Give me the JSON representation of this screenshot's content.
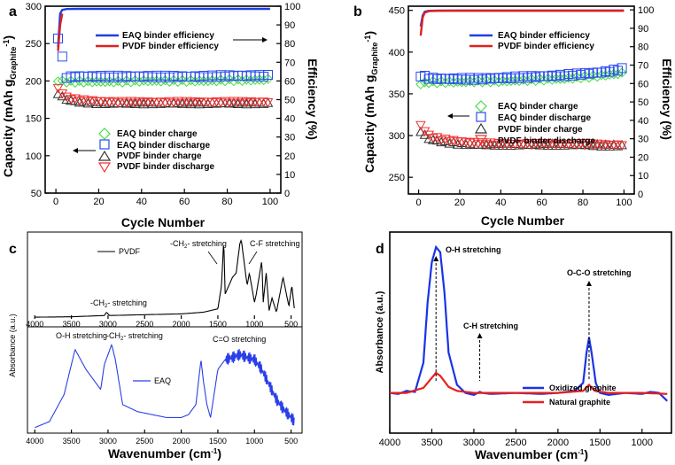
{
  "chart_data": [
    {
      "panel": "a",
      "type": "scatter",
      "xlabel": "Cycle Number",
      "ylabel_left": "Capacity (mAh g",
      "ylabel_left_sub": "Graphite",
      "ylabel_left_end": "-1",
      "ylabel_right": "Efficiency (%)",
      "xlim": [
        -5,
        105
      ],
      "xticks": [
        0,
        20,
        40,
        60,
        80,
        100
      ],
      "ylim_left": [
        50,
        300
      ],
      "yticks_left": [
        50,
        100,
        150,
        200,
        250,
        300
      ],
      "ylim_right": [
        0,
        100
      ],
      "yticks_right": [
        0,
        10,
        20,
        30,
        40,
        50,
        60,
        70,
        80,
        90,
        100
      ],
      "series": [
        {
          "name": "EAQ binder efficiency",
          "axis": "right",
          "style": "line",
          "color": "#1f3fe0",
          "x": [
            1,
            2,
            3,
            5,
            10,
            20,
            40,
            60,
            80,
            100
          ],
          "y": [
            78,
            96,
            98,
            98.5,
            98.6,
            98.6,
            98.6,
            98.6,
            98.6,
            98.6
          ]
        },
        {
          "name": "PVDF binder efficiency",
          "axis": "right",
          "style": "line",
          "color": "#e02020",
          "x": [
            1,
            2,
            3
          ],
          "y": [
            76,
            90,
            96
          ]
        },
        {
          "name": "EAQ binder charge",
          "axis": "left",
          "marker": "diamond",
          "color": "#44dd44",
          "x": [
            1,
            5,
            10,
            20,
            30,
            40,
            50,
            60,
            70,
            80,
            90,
            100
          ],
          "y": [
            200,
            199,
            199,
            199,
            199,
            200,
            200,
            200,
            200,
            201,
            201,
            202
          ]
        },
        {
          "name": "EAQ binder discharge",
          "axis": "left",
          "marker": "square",
          "color": "#2a4cf0",
          "x": [
            1,
            5,
            10,
            20,
            30,
            40,
            50,
            60,
            70,
            80,
            90,
            100
          ],
          "y": [
            258,
            205,
            206,
            206,
            206,
            206,
            206,
            206,
            206,
            207,
            207,
            207
          ]
        },
        {
          "name": "PVDF binder charge",
          "axis": "left",
          "marker": "triangle-up",
          "color": "#333333",
          "x": [
            1,
            5,
            10,
            20,
            30,
            40,
            50,
            60,
            70,
            80,
            90,
            100
          ],
          "y": [
            183,
            175,
            172,
            170,
            170,
            170,
            170,
            170,
            170,
            170,
            170,
            170
          ]
        },
        {
          "name": "PVDF binder discharge",
          "axis": "left",
          "marker": "triangle-down",
          "color": "#f03030",
          "x": [
            1,
            5,
            10,
            20,
            30,
            40,
            50,
            60,
            70,
            80,
            90,
            100
          ],
          "y": [
            190,
            178,
            175,
            173,
            172,
            172,
            172,
            172,
            172,
            172,
            172,
            172
          ]
        }
      ]
    },
    {
      "panel": "b",
      "type": "scatter",
      "xlabel": "Cycle Number",
      "ylabel_left": "Capacity (mAh g",
      "ylabel_left_sub": "Graphite",
      "ylabel_left_end": "-1",
      "ylabel_right": "Efficiency (%)",
      "xlim": [
        -5,
        105
      ],
      "xticks": [
        0,
        20,
        40,
        60,
        80,
        100
      ],
      "ylim_left": [
        230,
        455
      ],
      "yticks_left": [
        250,
        300,
        350,
        400,
        450
      ],
      "ylim_right": [
        0,
        102
      ],
      "yticks_right": [
        0,
        10,
        20,
        30,
        40,
        50,
        60,
        70,
        80,
        90,
        100
      ],
      "series": [
        {
          "name": "EAQ binder efficiency",
          "axis": "right",
          "style": "line",
          "color": "#1f3fe0",
          "x": [
            1,
            2,
            3,
            5,
            10,
            20,
            40,
            60,
            80,
            100
          ],
          "y": [
            91,
            97,
            99,
            99.5,
            99.6,
            99.6,
            99.6,
            99.6,
            99.6,
            99.6
          ]
        },
        {
          "name": "PVDF binder efficiency",
          "axis": "right",
          "style": "line",
          "color": "#e02020",
          "x": [
            1,
            2,
            3,
            5,
            10,
            20,
            40,
            60,
            80,
            100
          ],
          "y": [
            86,
            96,
            98.5,
            99.3,
            99.5,
            99.6,
            99.6,
            99.6,
            99.6,
            99.6
          ]
        },
        {
          "name": "EAQ binder charge",
          "axis": "left",
          "marker": "diamond",
          "color": "#44dd44",
          "x": [
            1,
            5,
            10,
            20,
            30,
            40,
            50,
            60,
            70,
            80,
            90,
            100
          ],
          "y": [
            362,
            364,
            364,
            364,
            365,
            365,
            366,
            367,
            368,
            370,
            372,
            375
          ]
        },
        {
          "name": "EAQ binder discharge",
          "axis": "left",
          "marker": "square",
          "color": "#2a4cf0",
          "x": [
            1,
            5,
            10,
            20,
            30,
            40,
            50,
            60,
            70,
            80,
            90,
            100
          ],
          "y": [
            372,
            369,
            368,
            368,
            368,
            369,
            370,
            371,
            372,
            374,
            376,
            380
          ]
        },
        {
          "name": "PVDF binder charge",
          "axis": "left",
          "marker": "triangle-up",
          "color": "#333333",
          "x": [
            1,
            5,
            10,
            20,
            30,
            40,
            50,
            60,
            70,
            80,
            90,
            100
          ],
          "y": [
            305,
            296,
            293,
            290,
            289,
            289,
            289,
            289,
            289,
            289,
            288,
            288
          ]
        },
        {
          "name": "PVDF binder discharge",
          "axis": "left",
          "marker": "triangle-down",
          "color": "#f03030",
          "x": [
            1,
            5,
            10,
            20,
            30,
            40,
            50,
            60,
            70,
            80,
            90,
            100
          ],
          "y": [
            312,
            300,
            296,
            293,
            291,
            290,
            290,
            290,
            290,
            290,
            289,
            289
          ]
        }
      ]
    },
    {
      "panel": "c",
      "type": "line",
      "xlabel": "Wavenumber (cm",
      "xlabel_sup": "-1",
      "ylabel": "Absorbance (a.u.)",
      "xlim": [
        4100,
        350
      ],
      "xticks": [
        4000,
        3500,
        3000,
        2500,
        2000,
        1500,
        1000,
        500
      ],
      "subplots": [
        {
          "name": "PVDF",
          "color": "#000000",
          "x": [
            4000,
            3500,
            3050,
            3020,
            2980,
            2500,
            2000,
            1700,
            1500,
            1450,
            1420,
            1400,
            1300,
            1250,
            1200,
            1180,
            1100,
            1070,
            1000,
            975,
            900,
            880,
            840,
            800,
            760,
            700,
            610,
            530,
            490,
            450
          ],
          "y": [
            2,
            2.5,
            4,
            8,
            4,
            5,
            6,
            8,
            12,
            40,
            95,
            30,
            50,
            55,
            90,
            95,
            40,
            55,
            20,
            30,
            70,
            20,
            55,
            10,
            25,
            8,
            50,
            15,
            40,
            8
          ],
          "annotations": [
            "-CH",
            "stretching",
            "C-F stretching"
          ]
        },
        {
          "name": "EAQ",
          "color": "#2a3fe8",
          "x": [
            4000,
            3800,
            3600,
            3450,
            3300,
            3100,
            3050,
            2950,
            2900,
            2800,
            2600,
            2400,
            2200,
            2000,
            1900,
            1800,
            1730,
            1700,
            1650,
            1600,
            1500,
            1450,
            1400,
            1300,
            1200,
            1100,
            1000,
            900,
            800,
            700,
            600,
            500,
            450
          ],
          "y": [
            2,
            8,
            35,
            80,
            60,
            40,
            65,
            85,
            70,
            25,
            18,
            15,
            12,
            12,
            15,
            25,
            70,
            50,
            25,
            12,
            60,
            65,
            70,
            72,
            75,
            72,
            70,
            60,
            45,
            30,
            20,
            12,
            8
          ],
          "annotations": [
            "O-H stretching",
            "stretching",
            "C=O stretching"
          ]
        }
      ]
    },
    {
      "panel": "d",
      "type": "line",
      "xlabel": "Wavenumber (cm",
      "xlabel_sup": "-1",
      "ylabel": "Absorbance (a.u.)",
      "xlim": [
        4000,
        650
      ],
      "xticks": [
        4000,
        3500,
        3000,
        2500,
        2000,
        1500,
        1000
      ],
      "series": [
        {
          "name": "Oxidized graphite",
          "color": "#1a33e6",
          "x": [
            4000,
            3900,
            3800,
            3700,
            3600,
            3550,
            3500,
            3450,
            3400,
            3350,
            3300,
            3200,
            3100,
            3000,
            2930,
            2900,
            2800,
            2500,
            2200,
            2000,
            1800,
            1700,
            1660,
            1630,
            1600,
            1550,
            1500,
            1400,
            1200,
            1000,
            900,
            800,
            700
          ],
          "y": [
            0,
            -1,
            2,
            1,
            30,
            90,
            130,
            145,
            140,
            100,
            40,
            8,
            0,
            -2,
            1,
            0,
            -1,
            0,
            -1,
            0,
            2,
            10,
            40,
            55,
            40,
            10,
            0,
            -2,
            0,
            -1,
            1,
            0,
            -8
          ]
        },
        {
          "name": "Natural graphite",
          "color": "#e62020",
          "x": [
            4000,
            3800,
            3600,
            3500,
            3450,
            3400,
            3300,
            3200,
            3000,
            2500,
            2000,
            1700,
            1630,
            1560,
            1400,
            1000,
            700
          ],
          "y": [
            0,
            0,
            5,
            15,
            20,
            17,
            6,
            2,
            0,
            0,
            0,
            2,
            8,
            2,
            0,
            0,
            -1
          ]
        }
      ],
      "annotations": [
        "O-H stretching",
        "C-H stretching",
        "O-C-O stretching"
      ]
    }
  ],
  "legend_a": {
    "eff": [
      "EAQ binder efficiency",
      "PVDF binder efficiency"
    ],
    "cap": [
      "EAQ binder charge",
      "EAQ binder discharge",
      "PVDF binder charge",
      "PVDF binder discharge"
    ]
  },
  "legend_b": {
    "eff": [
      "EAQ binder efficiency",
      "PVDF binder efficiency"
    ],
    "cap": [
      "EAQ binder charge",
      "EAQ binder discharge",
      "PVDF binder charge",
      "PVDF binder discharge"
    ]
  },
  "labels": {
    "a": "a",
    "b": "b",
    "c": "c",
    "d": "d",
    "pvdf": "PVDF",
    "eaq": "EAQ",
    "ch2_pvdf": "-CH",
    "ch2_sub": "2",
    "ch2_tail": "- stretching",
    "ch2_top": "-CH",
    "ch2_top_tail": "- stretching",
    "cf": "C-F stretching",
    "oh_c": "O-H stretching",
    "ch2_eaq": "-CH",
    "ch2_eaq_tail": "- stretching",
    "co_c": "C=O stretching",
    "oh_d": "O-H stretching",
    "ch_d": "C-H stretching",
    "oco_d": "O-C-O stretching",
    "leg_d1": "Oxidized graphite",
    "leg_d2": "Natural graphite"
  }
}
